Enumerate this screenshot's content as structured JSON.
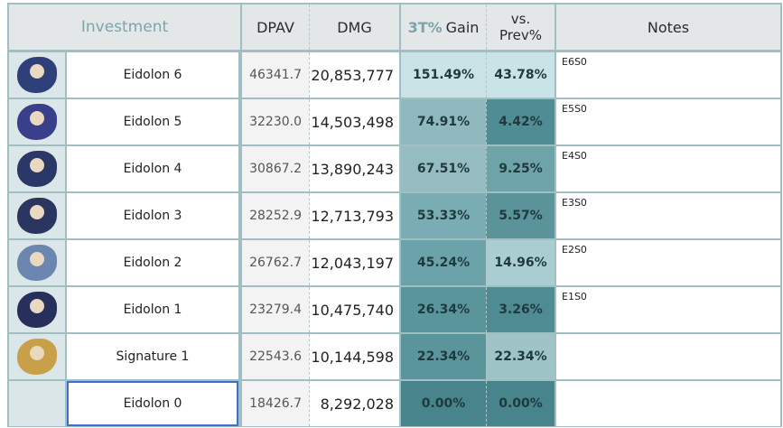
{
  "header": {
    "investment": "Investment",
    "dpav": "DPAV",
    "dmg": "DMG",
    "gain_accent": "3T%",
    "gain_rest": "Gain",
    "vs_line1": "vs.",
    "vs_line2": "Prev%",
    "notes": "Notes"
  },
  "rows": [
    {
      "name": "Eidolon 6",
      "dpav": "46341.7",
      "dmg": "20,853,777",
      "gain": "151.49%",
      "prev": "43.78%",
      "note": "E6S0",
      "gain_color": "#c9e3e6",
      "prev_color": "#c9e3e6",
      "icon": "character-portrait-icon",
      "icon_color": "#2f3f7a"
    },
    {
      "name": "Eidolon 5",
      "dpav": "32230.0",
      "dmg": "14,503,498",
      "gain": "74.91%",
      "prev": "4.42%",
      "note": "E5S0",
      "gain_color": "#8fb9be",
      "prev_color": "#4f8c94",
      "icon": "character-portrait-icon",
      "icon_color": "#3a3f8c"
    },
    {
      "name": "Eidolon 4",
      "dpav": "30867.2",
      "dmg": "13,890,243",
      "gain": "67.51%",
      "prev": "9.25%",
      "note": "E4S0",
      "gain_color": "#94bcc1",
      "prev_color": "#6ea3aa",
      "icon": "character-portrait-icon",
      "icon_color": "#2b3766"
    },
    {
      "name": "Eidolon 3",
      "dpav": "28252.9",
      "dmg": "12,713,793",
      "gain": "53.33%",
      "prev": "5.57%",
      "note": "E3S0",
      "gain_color": "#7aadb3",
      "prev_color": "#5a939a",
      "icon": "character-portrait-icon",
      "icon_color": "#2a3560"
    },
    {
      "name": "Eidolon 2",
      "dpav": "26762.7",
      "dmg": "12,043,197",
      "gain": "45.24%",
      "prev": "14.96%",
      "note": "E2S0",
      "gain_color": "#6ca3aa",
      "prev_color": "#a9cdd1",
      "icon": "character-portrait-icon",
      "icon_color": "#6d86b0"
    },
    {
      "name": "Eidolon 1",
      "dpav": "23279.4",
      "dmg": "10,475,740",
      "gain": "26.34%",
      "prev": "3.26%",
      "note": "E1S0",
      "gain_color": "#5a959c",
      "prev_color": "#4e8b93",
      "icon": "character-portrait-icon",
      "icon_color": "#27305a"
    },
    {
      "name": "Signature 1",
      "dpav": "22543.6",
      "dmg": "10,144,598",
      "gain": "22.34%",
      "prev": "22.34%",
      "note": "",
      "gain_color": "#5a959c",
      "prev_color": "#9ec4c8",
      "icon": "lightcone-card-icon",
      "icon_color": "#c9a04a"
    },
    {
      "name": "Eidolon 0",
      "dpav": "18426.7",
      "dmg": "8,292,028",
      "gain": "0.00%",
      "prev": "0.00%",
      "note": "",
      "gain_color": "#47848c",
      "prev_color": "#47848c",
      "icon": "",
      "icon_color": ""
    }
  ]
}
